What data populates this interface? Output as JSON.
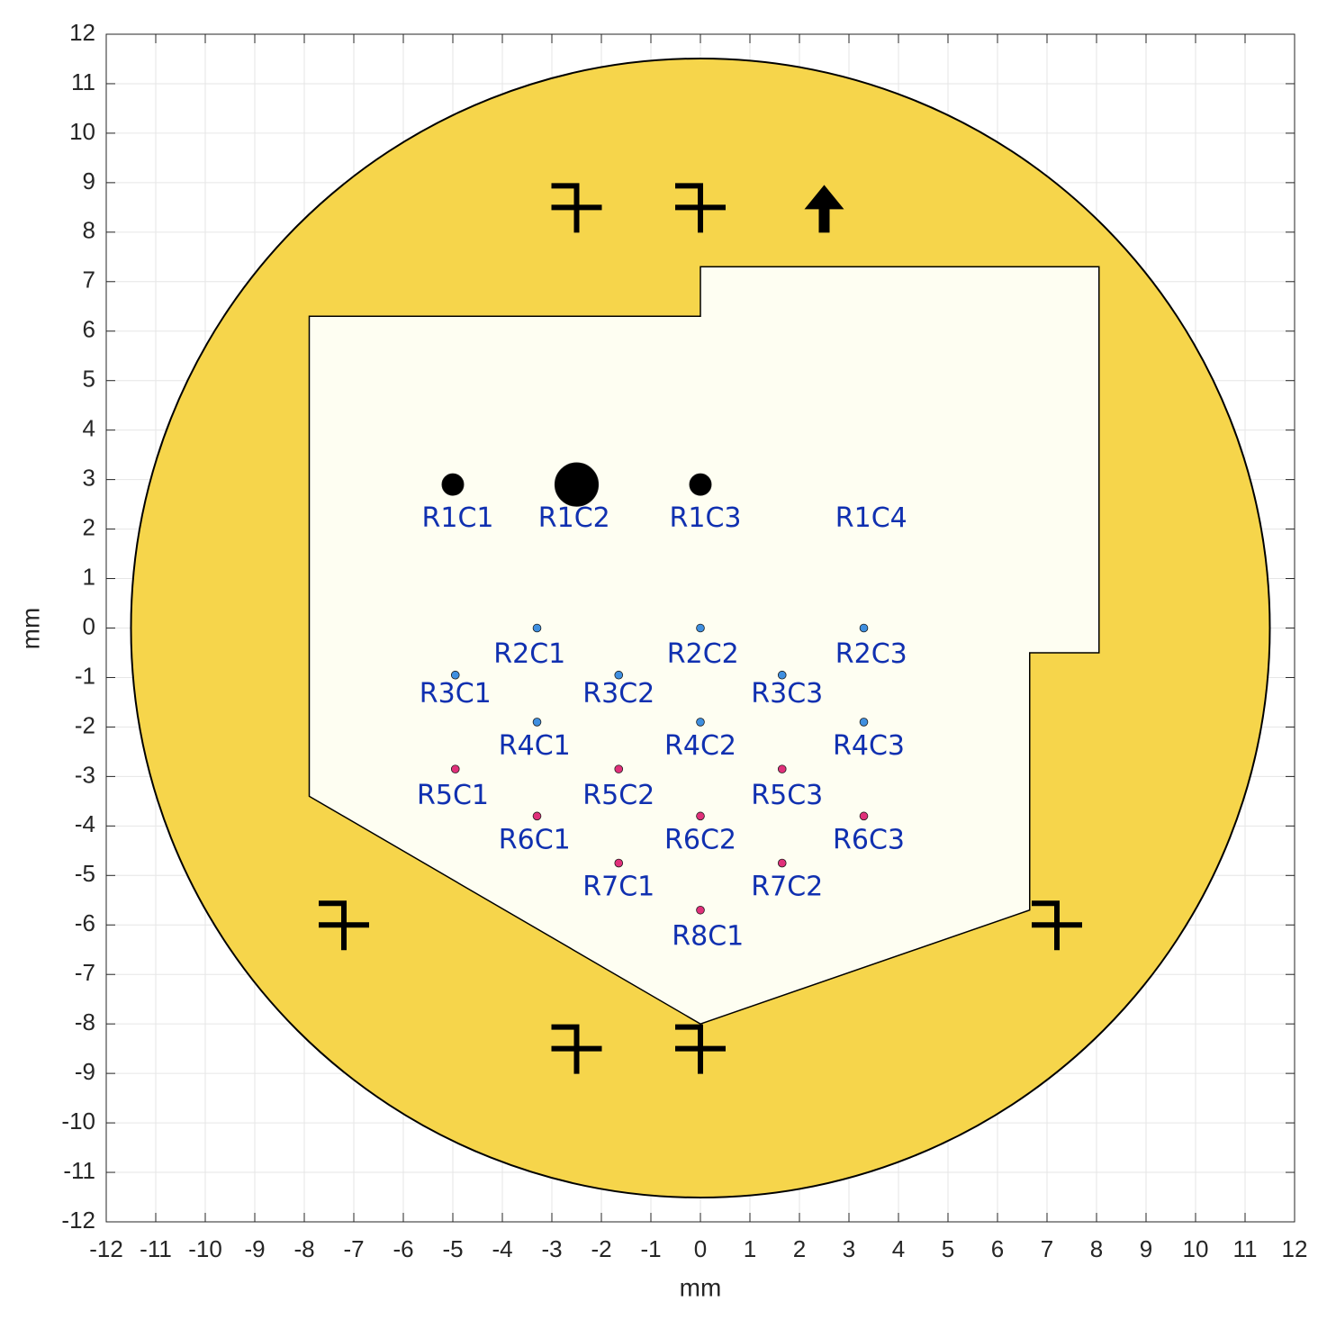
{
  "chart_data": {
    "type": "scatter",
    "xlabel": "mm",
    "ylabel": "mm",
    "xlim": [
      -12,
      12
    ],
    "ylim": [
      -12,
      12
    ],
    "xticks": [
      -12,
      -11,
      -10,
      -9,
      -8,
      -7,
      -6,
      -5,
      -4,
      -3,
      -2,
      -1,
      0,
      1,
      2,
      3,
      4,
      5,
      6,
      7,
      8,
      9,
      10,
      11,
      12
    ],
    "yticks": [
      -12,
      -11,
      -10,
      -9,
      -8,
      -7,
      -6,
      -5,
      -4,
      -3,
      -2,
      -1,
      0,
      1,
      2,
      3,
      4,
      5,
      6,
      7,
      8,
      9,
      10,
      11,
      12
    ],
    "grid": true,
    "circle": {
      "x": 0,
      "y": 0,
      "r": 11.5,
      "color": "#f6d54b"
    },
    "region": {
      "color": "#fefef2",
      "x": [
        -7.9,
        0,
        0,
        8.05,
        8.05,
        6.65,
        6.65,
        0,
        -7.9
      ],
      "y": [
        6.3,
        6.3,
        7.3,
        7.3,
        -0.5,
        -0.5,
        -5.7,
        -8,
        -3.4
      ]
    },
    "series": [
      {
        "color": "#000000",
        "x": [
          -5,
          -2.5,
          0
        ],
        "values": [
          2.9,
          2.9,
          2.9
        ],
        "radius": [
          0.22,
          0.44,
          0.22
        ]
      },
      {
        "color": "#3f8fe0",
        "x": [
          -3.3,
          0,
          3.3,
          -4.95,
          -1.65,
          1.65,
          -3.3,
          0,
          3.3
        ],
        "values": [
          0,
          0,
          0,
          -0.95,
          -0.95,
          -0.95,
          -1.9,
          -1.9,
          -1.9
        ],
        "radius": [
          0.08,
          0.08,
          0.08,
          0.08,
          0.08,
          0.08,
          0.08,
          0.08,
          0.08
        ]
      },
      {
        "color": "#e0307a",
        "x": [
          -4.95,
          -1.65,
          1.65,
          -3.3,
          0,
          3.3,
          -1.65,
          1.65,
          0
        ],
        "values": [
          -2.85,
          -2.85,
          -2.85,
          -3.8,
          -3.8,
          -3.8,
          -4.75,
          -4.75,
          -5.7
        ],
        "radius": [
          0.08,
          0.08,
          0.08,
          0.08,
          0.08,
          0.08,
          0.08,
          0.08,
          0.08
        ]
      }
    ],
    "label_color": "#1030b0",
    "labels": [
      {
        "text": "R1C1",
        "x": -4.9,
        "y": 2.2
      },
      {
        "text": "R1C2",
        "x": -2.55,
        "y": 2.2
      },
      {
        "text": "R1C3",
        "x": 0.1,
        "y": 2.2
      },
      {
        "text": "R1C4",
        "x": 3.45,
        "y": 2.2
      },
      {
        "text": "R2C1",
        "x": -3.45,
        "y": -0.55
      },
      {
        "text": "R2C2",
        "x": 0.05,
        "y": -0.55
      },
      {
        "text": "R2C3",
        "x": 3.45,
        "y": -0.55
      },
      {
        "text": "R3C1",
        "x": -4.95,
        "y": -1.35
      },
      {
        "text": "R3C2",
        "x": -1.65,
        "y": -1.35
      },
      {
        "text": "R3C3",
        "x": 1.75,
        "y": -1.35
      },
      {
        "text": "R4C1",
        "x": -3.35,
        "y": -2.4
      },
      {
        "text": "R4C2",
        "x": 0,
        "y": -2.4
      },
      {
        "text": "R4C3",
        "x": 3.4,
        "y": -2.4
      },
      {
        "text": "R5C1",
        "x": -5,
        "y": -3.4
      },
      {
        "text": "R5C2",
        "x": -1.65,
        "y": -3.4
      },
      {
        "text": "R5C3",
        "x": 1.75,
        "y": -3.4
      },
      {
        "text": "R6C1",
        "x": -3.35,
        "y": -4.3
      },
      {
        "text": "R6C2",
        "x": 0,
        "y": -4.3
      },
      {
        "text": "R6C3",
        "x": 3.4,
        "y": -4.3
      },
      {
        "text": "R7C1",
        "x": -1.65,
        "y": -5.25
      },
      {
        "text": "R7C2",
        "x": 1.75,
        "y": -5.25
      },
      {
        "text": "R8C1",
        "x": 0.15,
        "y": -6.25
      }
    ],
    "fiducials": {
      "x": [
        -2.5,
        0,
        -7.2,
        7.2,
        -2.5,
        0
      ],
      "y": [
        8.5,
        8.5,
        -6,
        -6,
        -8.5,
        -8.5
      ]
    },
    "arrow": {
      "x": 2.5,
      "y": 8.5
    }
  }
}
